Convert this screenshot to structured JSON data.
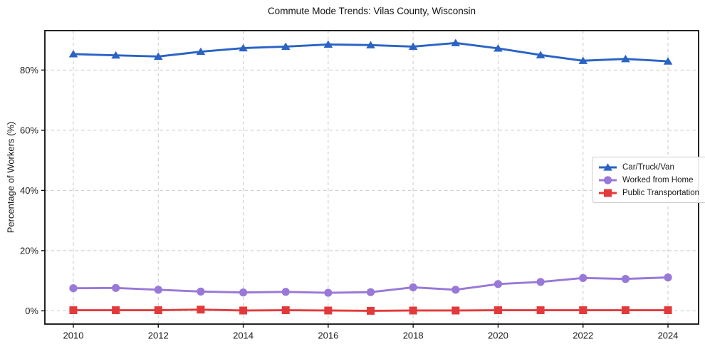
{
  "chart_data": {
    "type": "line",
    "title": "Commute Mode Trends: Vilas County, Wisconsin",
    "xlabel": "",
    "ylabel": "Percentage of Workers (%)",
    "x": [
      2010,
      2011,
      2012,
      2013,
      2014,
      2015,
      2016,
      2017,
      2018,
      2019,
      2020,
      2021,
      2022,
      2023,
      2024
    ],
    "x_ticks": [
      2010,
      2012,
      2014,
      2016,
      2018,
      2020,
      2022,
      2024
    ],
    "x_tick_labels": [
      "2010",
      "2012",
      "2014",
      "2016",
      "2018",
      "2020",
      "2022",
      "2024"
    ],
    "y_ticks": [
      0,
      20,
      40,
      60,
      80
    ],
    "y_tick_labels": [
      "0%",
      "20%",
      "40%",
      "60%",
      "80%"
    ],
    "xlim": [
      2009.33,
      2024.72
    ],
    "ylim": [
      -4.4,
      93.1
    ],
    "grid": true,
    "grid_style": "dashed",
    "grid_color": "#c9c9c9",
    "legend_position": "center right",
    "series": [
      {
        "name": "Car/Truck/Van",
        "color": "#2a63c4",
        "marker": "triangle",
        "values": [
          85.3,
          84.9,
          84.5,
          86.1,
          87.3,
          87.8,
          88.5,
          88.3,
          87.8,
          89.0,
          87.2,
          85.0,
          83.1,
          83.7,
          82.9
        ]
      },
      {
        "name": "Worked from Home",
        "color": "#9878d8",
        "marker": "circle",
        "values": [
          7.5,
          7.6,
          7.0,
          6.4,
          6.1,
          6.3,
          6.0,
          6.2,
          7.8,
          7.0,
          8.9,
          9.6,
          10.9,
          10.6,
          11.1
        ]
      },
      {
        "name": "Public Transportation",
        "color": "#e23a3a",
        "marker": "square",
        "values": [
          0.2,
          0.2,
          0.2,
          0.4,
          0.1,
          0.2,
          0.1,
          0.0,
          0.1,
          0.1,
          0.2,
          0.2,
          0.2,
          0.2,
          0.2
        ]
      }
    ]
  }
}
